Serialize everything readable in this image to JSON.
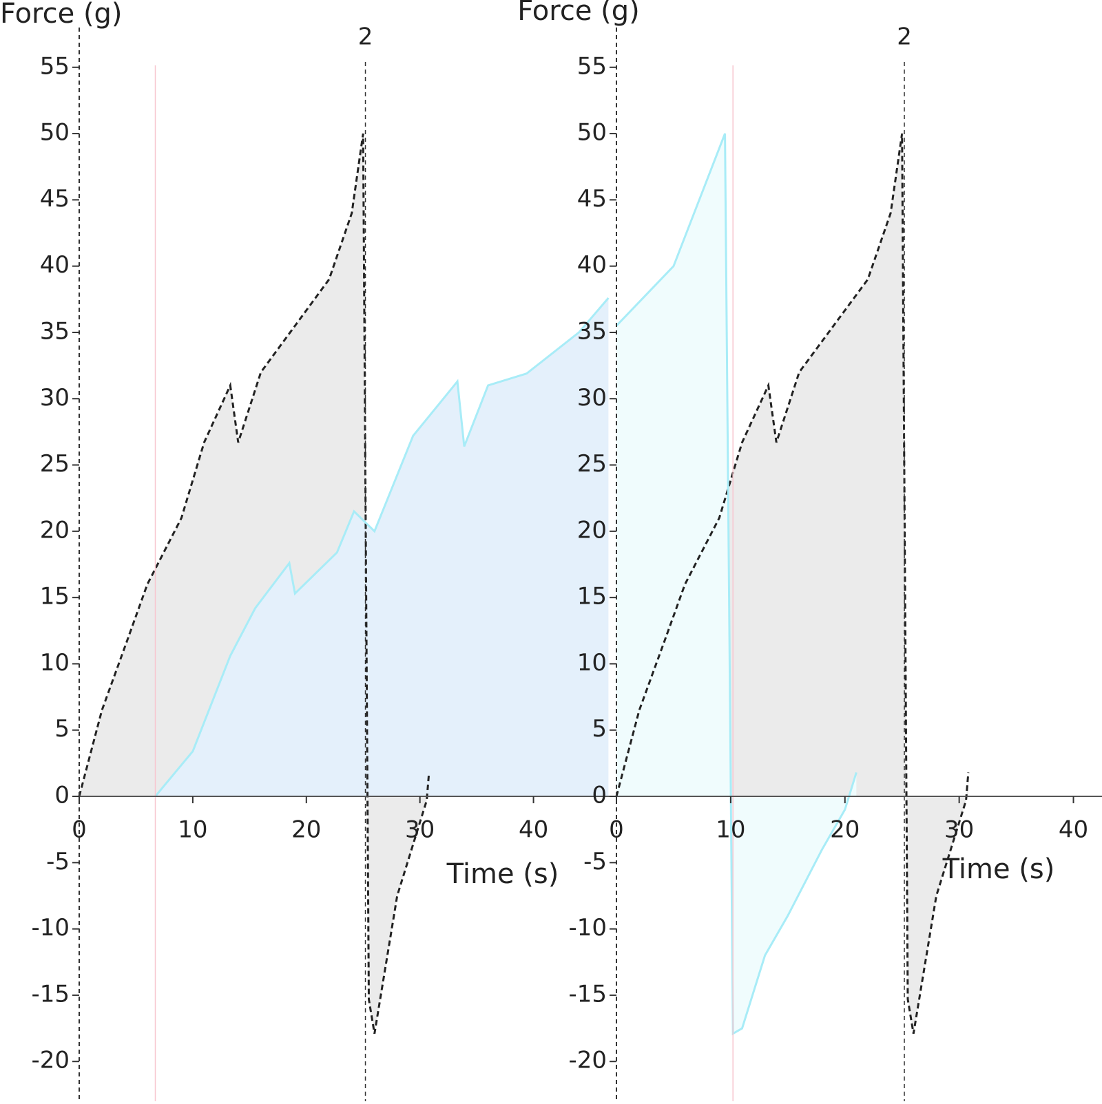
{
  "chart_data": [
    {
      "type": "line",
      "ylabel": "Force (g)",
      "xlabel": "Time (s)",
      "xlim": [
        0,
        47
      ],
      "xticks": [
        0,
        10,
        20,
        30,
        40
      ],
      "ylim": [
        -23,
        58
      ],
      "yticks": [
        -20,
        -15,
        -10,
        -5,
        0,
        5,
        10,
        15,
        20,
        25,
        30,
        35,
        40,
        45,
        50,
        55
      ],
      "markers": [
        {
          "x": 25.2,
          "label": "2"
        }
      ],
      "highlight_x": 6.7,
      "series": [
        {
          "color": "#222222",
          "fill": "#ebebeb",
          "dashed": true,
          "x": [
            0,
            2,
            4.2,
            6,
            9,
            11,
            13.3,
            14,
            16,
            19,
            22,
            24,
            25,
            25.5,
            26,
            28,
            30.6,
            30.8
          ],
          "values": [
            0,
            6.5,
            11.7,
            16,
            21,
            26.7,
            31,
            26.7,
            32,
            35.5,
            39,
            44,
            50,
            -15.3,
            -17.9,
            -7.5,
            -0.3,
            1.8
          ]
        },
        {
          "color": "#a8ecf7",
          "fill": "#e4f0fb",
          "dashed": false,
          "x": [
            6.7,
            10,
            13.3,
            15.5,
            18.5,
            19,
            22.7,
            24.2,
            26,
            29.4,
            33.3,
            33.9,
            36,
            39.4,
            44,
            46.6
          ],
          "values": [
            0,
            3.4,
            10.6,
            14.2,
            17.6,
            15.3,
            18.4,
            21.5,
            20,
            27.2,
            31.3,
            26.4,
            31,
            31.9,
            35,
            37.6
          ]
        }
      ]
    },
    {
      "type": "line",
      "ylabel": "Force (g)",
      "xlabel": "Time (s)",
      "xlim": [
        0,
        42.5
      ],
      "xticks": [
        0,
        10,
        20,
        30,
        40
      ],
      "ylim": [
        -23,
        58
      ],
      "yticks": [
        -20,
        -15,
        -10,
        -5,
        0,
        5,
        10,
        15,
        20,
        25,
        30,
        35,
        40,
        45,
        50,
        55
      ],
      "markers": [
        {
          "x": 25.2,
          "label": "2"
        }
      ],
      "highlight_x": 10.2,
      "series": [
        {
          "color": "#222222",
          "fill": "#ebebeb",
          "dashed": true,
          "x": [
            0,
            2,
            4.2,
            6,
            9,
            11,
            13.3,
            14,
            16,
            19,
            22,
            24,
            25,
            25.5,
            26,
            28,
            30.6,
            30.8
          ],
          "values": [
            0,
            6.5,
            11.7,
            16,
            21,
            26.7,
            31,
            26.7,
            32,
            35.5,
            39,
            44,
            50,
            -15.3,
            -17.9,
            -7.5,
            -0.3,
            1.8
          ]
        },
        {
          "color": "#a8ecf7",
          "fill": "#f0fcfd",
          "dashed": false,
          "x": [
            0,
            5,
            9.5,
            10.2,
            11,
            13,
            15,
            18,
            20,
            21
          ],
          "values": [
            35.5,
            40,
            50,
            -17.9,
            -17.5,
            -12,
            -9,
            -4,
            -1,
            1.8
          ]
        }
      ]
    }
  ]
}
